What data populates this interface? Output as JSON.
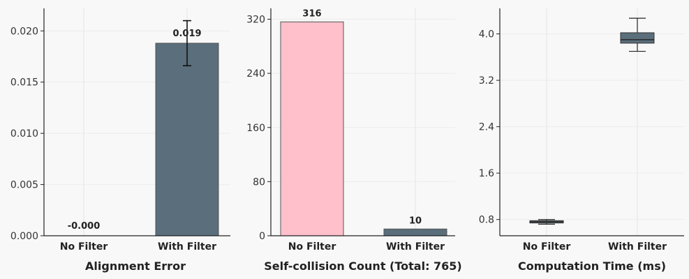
{
  "chart_data": [
    {
      "type": "bar",
      "xlabel": "Alignment Error",
      "categories": [
        "No Filter",
        "With Filter"
      ],
      "values": [
        0.0,
        0.0188
      ],
      "error": [
        0.0,
        0.0022
      ],
      "data_labels": [
        "-0.000",
        "0.019"
      ],
      "ylim": [
        0,
        0.0222
      ],
      "yticks": [
        0.0,
        0.005,
        0.01,
        0.015,
        0.02
      ],
      "ytick_labels": [
        "0.000",
        "0.005",
        "0.010",
        "0.015",
        "0.020"
      ],
      "colors": [
        "#ffc0cb",
        "#5a6e7b"
      ],
      "grid": true
    },
    {
      "type": "bar",
      "xlabel": "Self-collision Count (Total: 765)",
      "categories": [
        "No Filter",
        "With Filter"
      ],
      "values": [
        316,
        10
      ],
      "data_labels": [
        "316",
        "10"
      ],
      "ylim": [
        0,
        336
      ],
      "yticks": [
        0,
        80,
        160,
        240,
        320
      ],
      "ytick_labels": [
        "0",
        "80",
        "160",
        "240",
        "320"
      ],
      "colors": [
        "#ffc0cb",
        "#5a6e7b"
      ],
      "grid": true
    },
    {
      "type": "box",
      "xlabel": "Computation Time (ms)",
      "categories": [
        "No Filter",
        "With Filter"
      ],
      "boxes": [
        {
          "whisker_low": 0.72,
          "q1": 0.74,
          "median": 0.76,
          "q3": 0.78,
          "whisker_high": 0.8
        },
        {
          "whisker_low": 3.7,
          "q1": 3.84,
          "median": 3.9,
          "q3": 4.02,
          "whisker_high": 4.27
        }
      ],
      "ylim": [
        0.52,
        4.44
      ],
      "yticks": [
        0.8,
        1.6,
        2.4,
        3.2,
        4.0
      ],
      "ytick_labels": [
        "0.8",
        "1.6",
        "2.4",
        "3.2",
        "4.0"
      ],
      "colors": [
        "#5a6e7b",
        "#5a6e7b"
      ],
      "grid": true
    }
  ]
}
